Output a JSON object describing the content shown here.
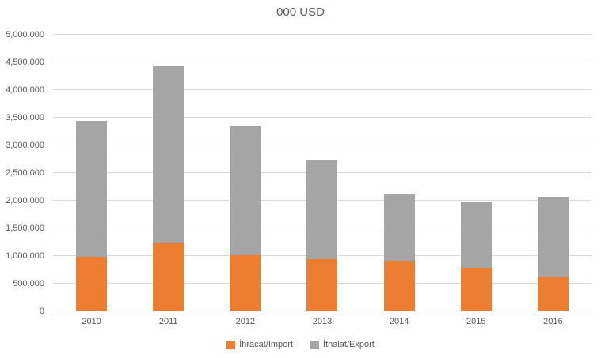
{
  "colors": {
    "import_series": "#ED7D31",
    "export_series": "#A5A5A5",
    "gridline": "#D9D9D9",
    "text": "#595959",
    "background": "#FFFFFF"
  },
  "chart_data": {
    "type": "bar",
    "stacked": true,
    "title": "000 USD",
    "xlabel": "",
    "ylabel": "",
    "categories": [
      "2010",
      "2011",
      "2012",
      "2013",
      "2014",
      "2015",
      "2016"
    ],
    "series": [
      {
        "name": "İhracat/Import",
        "color": "#ED7D31",
        "values": [
          980000,
          1240000,
          1010000,
          950000,
          910000,
          790000,
          635000
        ]
      },
      {
        "name": "İthalat/Export",
        "color": "#A5A5A5",
        "values": [
          2460000,
          3200000,
          2350000,
          1780000,
          1210000,
          1185000,
          1430000
        ]
      }
    ],
    "totals": [
      3440000,
      4440000,
      3360000,
      2730000,
      2120000,
      1975000,
      2065000
    ],
    "ylim": [
      0,
      5000000
    ],
    "ytick_step": 500000,
    "y_tick_labels": [
      "0",
      "500,000",
      "1,000,000",
      "1,500,000",
      "2,000,000",
      "2,500,000",
      "3,000,000",
      "3,500,000",
      "4,000,000",
      "4,500,000",
      "5,000,000"
    ],
    "grid": true,
    "legend_position": "bottom"
  }
}
